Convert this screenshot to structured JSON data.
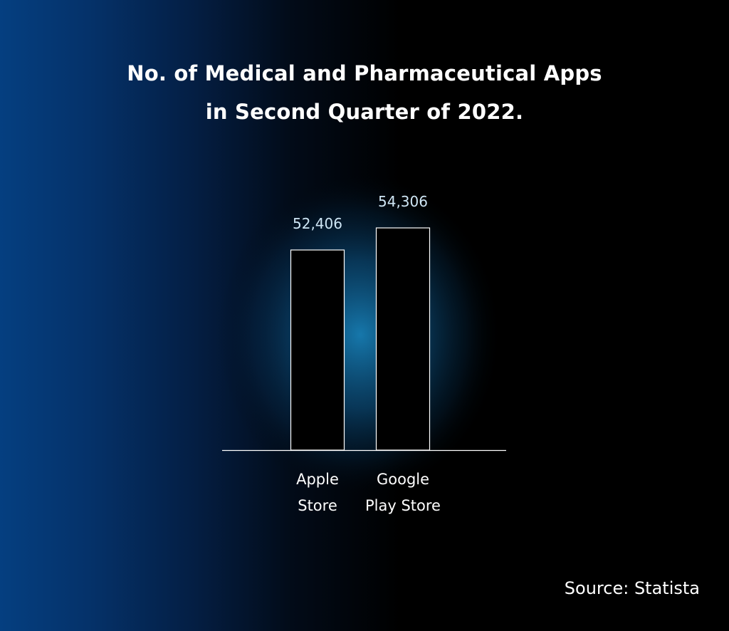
{
  "title_line1": "No. of Medical and Pharmaceutical Apps",
  "title_line2": "in Second Quarter of 2022.",
  "source": "Source: Statista",
  "colors": {
    "bar_fill": "#000000",
    "bar_stroke": "#ffffff",
    "value_label": "#cfe6f5",
    "glow": "#1a8cc8"
  },
  "chart_data": {
    "type": "bar",
    "title": "No. of Medical and Pharmaceutical Apps in Second Quarter of 2022.",
    "categories": [
      [
        "Apple",
        "Store"
      ],
      [
        "Google",
        "Play Store"
      ]
    ],
    "values": [
      52406,
      54306
    ],
    "value_labels": [
      "52,406",
      "54,306"
    ],
    "xlabel": "",
    "ylabel": "",
    "grid": false,
    "legend": "none"
  }
}
